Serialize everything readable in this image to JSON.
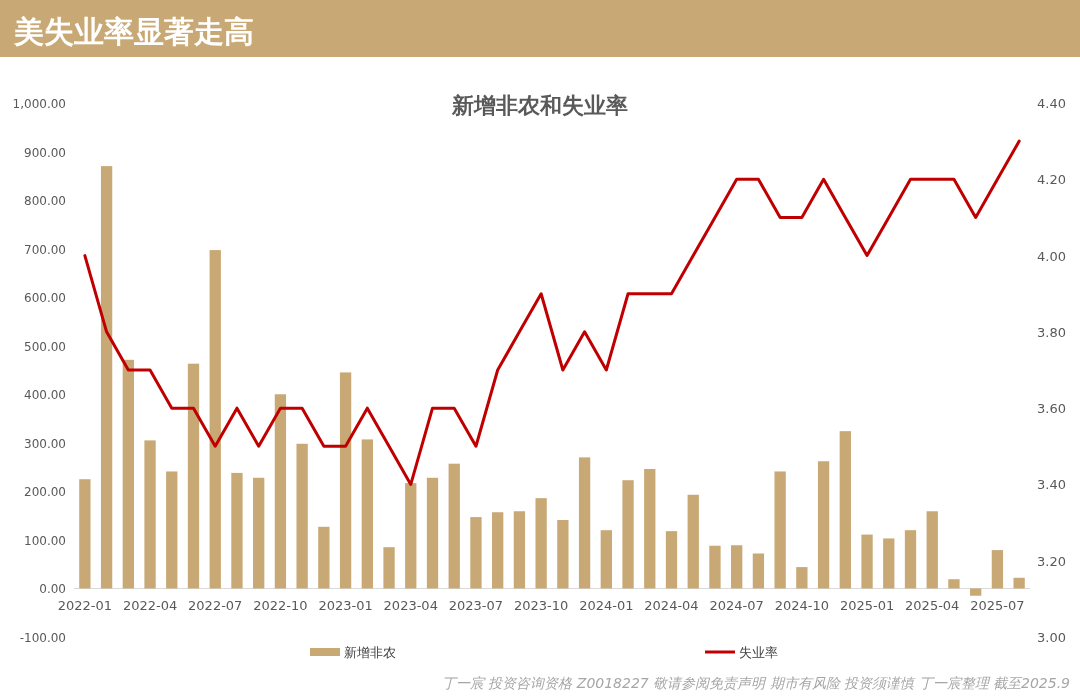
{
  "chart_data": {
    "type": "bar",
    "title": "美失业率显著走高",
    "subtitle": "新增非农和失业率",
    "categories": [
      "2022-01",
      null,
      null,
      "2022-04",
      null,
      null,
      "2022-07",
      null,
      null,
      "2022-10",
      null,
      null,
      "2023-01",
      null,
      null,
      "2023-04",
      null,
      null,
      "2023-07",
      null,
      null,
      "2023-10",
      null,
      null,
      "2024-01",
      null,
      null,
      "2024-04",
      null,
      null,
      "2024-07",
      null,
      null,
      "2024-10",
      null,
      null,
      "2025-01",
      null,
      null,
      "2025-04",
      null,
      null,
      "2025-07",
      null
    ],
    "series": [
      {
        "name": "新增非农",
        "color": "#c8a874",
        "values": [
          225,
          870,
          471,
          305,
          241,
          463,
          697,
          238,
          228,
          400,
          298,
          127,
          445,
          307,
          85,
          217,
          228,
          257,
          147,
          157,
          159,
          186,
          141,
          270,
          120,
          223,
          246,
          118,
          193,
          88,
          89,
          72,
          241,
          44,
          262,
          324,
          111,
          103,
          120,
          159,
          19,
          -15,
          79,
          22
        ]
      },
      {
        "name": "失业率",
        "type": "line",
        "axis": "y2",
        "color": "#c00000",
        "values": [
          4.0,
          3.8,
          3.7,
          3.7,
          3.6,
          3.6,
          3.5,
          3.6,
          3.5,
          3.6,
          3.6,
          3.5,
          3.5,
          3.6,
          3.5,
          3.4,
          3.6,
          3.6,
          3.5,
          3.7,
          3.8,
          3.9,
          3.7,
          3.8,
          3.7,
          3.9,
          3.9,
          3.9,
          4.0,
          4.1,
          4.2,
          4.2,
          4.1,
          4.1,
          4.2,
          4.1,
          4.0,
          4.1,
          4.2,
          4.2,
          4.2,
          4.1,
          4.2,
          4.3
        ]
      }
    ],
    "ylim": [
      -100,
      1000
    ],
    "yticks": [
      {
        "value": -100,
        "label": "-100.00"
      },
      {
        "value": 0,
        "label": "0.00"
      },
      {
        "value": 100,
        "label": "100.00"
      },
      {
        "value": 200,
        "label": "200.00"
      },
      {
        "value": 300,
        "label": "300.00"
      },
      {
        "value": 400,
        "label": "400.00"
      },
      {
        "value": 500,
        "label": "500.00"
      },
      {
        "value": 600,
        "label": "600.00"
      },
      {
        "value": 700,
        "label": "700.00"
      },
      {
        "value": 800,
        "label": "800.00"
      },
      {
        "value": 900,
        "label": "900.00"
      },
      {
        "value": 1000,
        "label": "1,000.00"
      }
    ],
    "y2lim": [
      3.0,
      4.4
    ],
    "y2ticks": [
      {
        "value": 3.0,
        "label": "3.00"
      },
      {
        "value": 3.2,
        "label": "3.20"
      },
      {
        "value": 3.4,
        "label": "3.40"
      },
      {
        "value": 3.6,
        "label": "3.60"
      },
      {
        "value": 3.8,
        "label": "3.80"
      },
      {
        "value": 4.0,
        "label": "4.00"
      },
      {
        "value": 4.2,
        "label": "4.20"
      },
      {
        "value": 4.4,
        "label": "4.40"
      }
    ],
    "legend": "bottom",
    "annotations": [
      "丁一宸 投资咨询资格 Z0018227 敬请参阅免责声明 期市有风险 投资须谨慎 丁一宸整理 截至2025.9"
    ]
  }
}
